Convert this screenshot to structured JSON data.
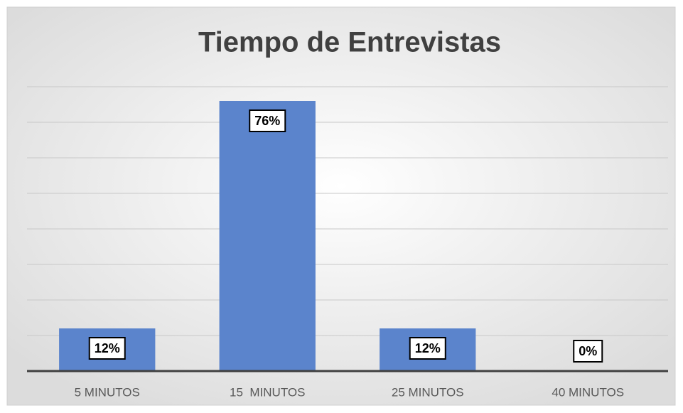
{
  "chart_data": {
    "type": "bar",
    "title": "Tiempo de Entrevistas",
    "categories": [
      "5 MINUTOS",
      "15  MINUTOS",
      "25 MINUTOS",
      "40 MINUTOS"
    ],
    "values": [
      12,
      76,
      12,
      0
    ],
    "value_labels": [
      "12%",
      "76%",
      "12%",
      "0%"
    ],
    "color": "#5b84cc",
    "ylim": [
      0,
      80
    ],
    "yticks": [
      0,
      10,
      20,
      30,
      40,
      50,
      60,
      70,
      80
    ],
    "grid": true
  }
}
